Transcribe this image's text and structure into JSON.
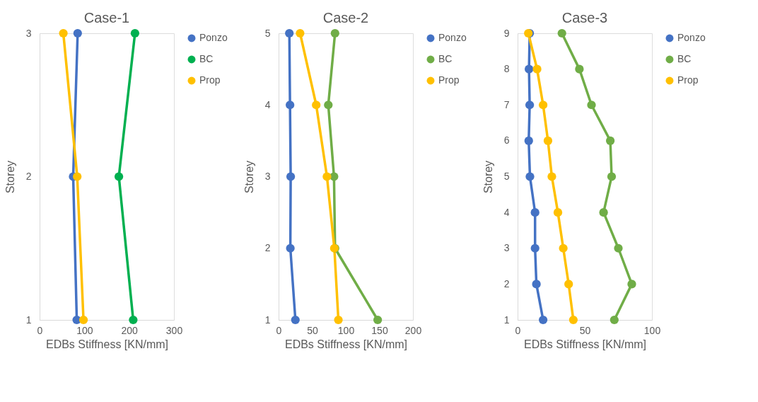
{
  "chart_data": [
    {
      "type": "line",
      "title": "Case-1",
      "xlabel": "EDBs Stiffness [KN/mm]",
      "ylabel": "Storey",
      "xlim": [
        0,
        300
      ],
      "xticks": [
        0,
        100,
        200,
        300
      ],
      "ylim": [
        1,
        3
      ],
      "yticks": [
        1,
        2,
        3
      ],
      "grid": false,
      "legend": "top right",
      "marker": "circle",
      "line_style": "solid",
      "series": [
        {
          "name": "Ponzo",
          "color": "#4472c4",
          "x": [
            83,
            75,
            85
          ],
          "values": [
            1,
            2,
            3
          ]
        },
        {
          "name": "BC",
          "color": "#00b050",
          "x": [
            209,
            177,
            213
          ],
          "values": [
            1,
            2,
            3
          ]
        },
        {
          "name": "Prop",
          "color": "#ffc000",
          "x": [
            98,
            84,
            53
          ],
          "values": [
            1,
            2,
            3
          ]
        }
      ]
    },
    {
      "type": "line",
      "title": "Case-2",
      "xlabel": "EDBs Stiffness [KN/mm]",
      "ylabel": "Storey",
      "xlim": [
        0,
        200
      ],
      "xticks": [
        0,
        50,
        100,
        150,
        200
      ],
      "ylim": [
        1,
        5
      ],
      "yticks": [
        1,
        2,
        3,
        4,
        5
      ],
      "grid": false,
      "legend": "top right",
      "marker": "circle",
      "line_style": "solid",
      "series": [
        {
          "name": "Ponzo",
          "color": "#4472c4",
          "x": [
            25,
            17.5,
            18,
            17,
            16
          ],
          "values": [
            1,
            2,
            3,
            4,
            5
          ]
        },
        {
          "name": "BC",
          "color": "#70ad47",
          "x": [
            147.5,
            84,
            82.5,
            74,
            84
          ],
          "values": [
            1,
            2,
            3,
            4,
            5
          ]
        },
        {
          "name": "Prop",
          "color": "#ffc000",
          "x": [
            89,
            83,
            72,
            56,
            32
          ],
          "values": [
            1,
            2,
            3,
            4,
            5
          ]
        }
      ]
    },
    {
      "type": "line",
      "title": "Case-3",
      "xlabel": "EDBs Stiffness [KN/mm]",
      "ylabel": "Storey",
      "xlim": [
        0,
        100
      ],
      "xticks": [
        0,
        50,
        100
      ],
      "ylim": [
        1,
        9
      ],
      "yticks": [
        1,
        2,
        3,
        4,
        5,
        6,
        7,
        8,
        9
      ],
      "grid": false,
      "legend": "top right",
      "marker": "circle",
      "line_style": "solid",
      "series": [
        {
          "name": "Ponzo",
          "color": "#4472c4",
          "x": [
            19,
            14,
            13,
            13,
            9.2,
            8.3,
            9,
            8.5,
            9
          ],
          "values": [
            1,
            2,
            3,
            4,
            5,
            6,
            7,
            8,
            9
          ]
        },
        {
          "name": "BC",
          "color": "#70ad47",
          "x": [
            72,
            85,
            75,
            64,
            70,
            69,
            55,
            46,
            33
          ],
          "values": [
            1,
            2,
            3,
            4,
            5,
            6,
            7,
            8,
            9
          ]
        },
        {
          "name": "Prop",
          "color": "#ffc000",
          "x": [
            41.5,
            38,
            34,
            30,
            25.5,
            22.6,
            19,
            14.5,
            8
          ],
          "values": [
            1,
            2,
            3,
            4,
            5,
            6,
            7,
            8,
            9
          ]
        }
      ]
    }
  ]
}
